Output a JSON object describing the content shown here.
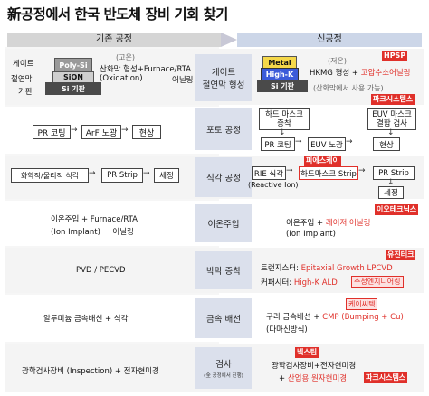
{
  "title": "新공정에서 한국 반도체 장비 기회 찾기",
  "header": {
    "left": "기존 공정",
    "right": "신공정"
  },
  "rows": {
    "gate": {
      "center": "게이트\n절연막 형성",
      "left": {
        "labels": [
          "게이트",
          "절연막",
          "기판"
        ],
        "layers": [
          "Poly-Si",
          "SiON",
          "Si 기판"
        ],
        "note_top": "(고온)",
        "process": "산화막 형성+Furnace/RTA",
        "process2": "(Oxidation)",
        "process3": "어닐링"
      },
      "right": {
        "layers": [
          "Metal",
          "High-K",
          "Si 기판"
        ],
        "note_top": "(저온)",
        "process_prefix": "HKMG 형성 + ",
        "process_red": "고압수소어닐링",
        "note": "(산화막에서 사용 가능)",
        "tag_hpsp": "HPSP",
        "tag_park": "파크시스템스"
      }
    },
    "photo": {
      "center": "포토 공정",
      "left": [
        "PR 코팅",
        "ArF 노광",
        "현상"
      ],
      "right": {
        "top_box": "하드 마스크\n증착",
        "euv_box": "EUV 마스크\n결함 검사",
        "flow": [
          "PR 코팅",
          "EUV 노광",
          "현상"
        ]
      }
    },
    "etch": {
      "center": "식각 공정",
      "left": [
        "화학적/물리적 식각",
        "PR Strip",
        "세정"
      ],
      "right": {
        "tag": "피에스케이",
        "rie": "RIE 식각",
        "rie_sub": "(Reactive Ion)",
        "hardmask": "하드마스크 Strip",
        "strip": "PR Strip",
        "clean": "세정"
      }
    },
    "ion": {
      "center": "이온주입",
      "left_line1": "이온주입 + Furnace/RTA",
      "left_line2": "(Ion Implant)     어닐링",
      "right_tag": "이오테크닉스",
      "right_prefix": "이온주입 + ",
      "right_red": "레이저 어닐링",
      "right_line2": "(Ion Implant)"
    },
    "deposition": {
      "center": "박막 증착",
      "left": "PVD / PECVD",
      "right_tag1": "유진테크",
      "right_line1_prefix": "트랜지스터: ",
      "right_line1_red": "Epitaxial Growth LPCVD",
      "right_tag2": "주성엔지니어링",
      "right_line2_prefix": "커패시터: ",
      "right_line2_red": "High-K ALD"
    },
    "metal": {
      "center": "금속 배선",
      "left": "알루미늄 금속배선 + 식각",
      "right_tag": "케이씨텍",
      "right_prefix": "구리 금속배선 + ",
      "right_red": "CMP (Bumping + Cu)",
      "right_line2": "(다마신방식)"
    },
    "inspection": {
      "center": "검사",
      "center_sub": "(全 공정에서 진행)",
      "left": "광학검사장비 (Inspection) + 전자현미경",
      "right_tag1": "넥스틴",
      "right_line1": "광학검사장비+전자현미경",
      "right_line2_prefix": "+ ",
      "right_line2_red": "산업용 원자현미경",
      "right_tag2": "파크시스템스"
    }
  },
  "colors": {
    "accent_red": "#e0302a",
    "metal": "#f5d84a",
    "highk": "#3b5bd9",
    "polysi": "#9a9a9a",
    "sion": "#c8c8c8",
    "substrate": "#4a4a4a"
  }
}
